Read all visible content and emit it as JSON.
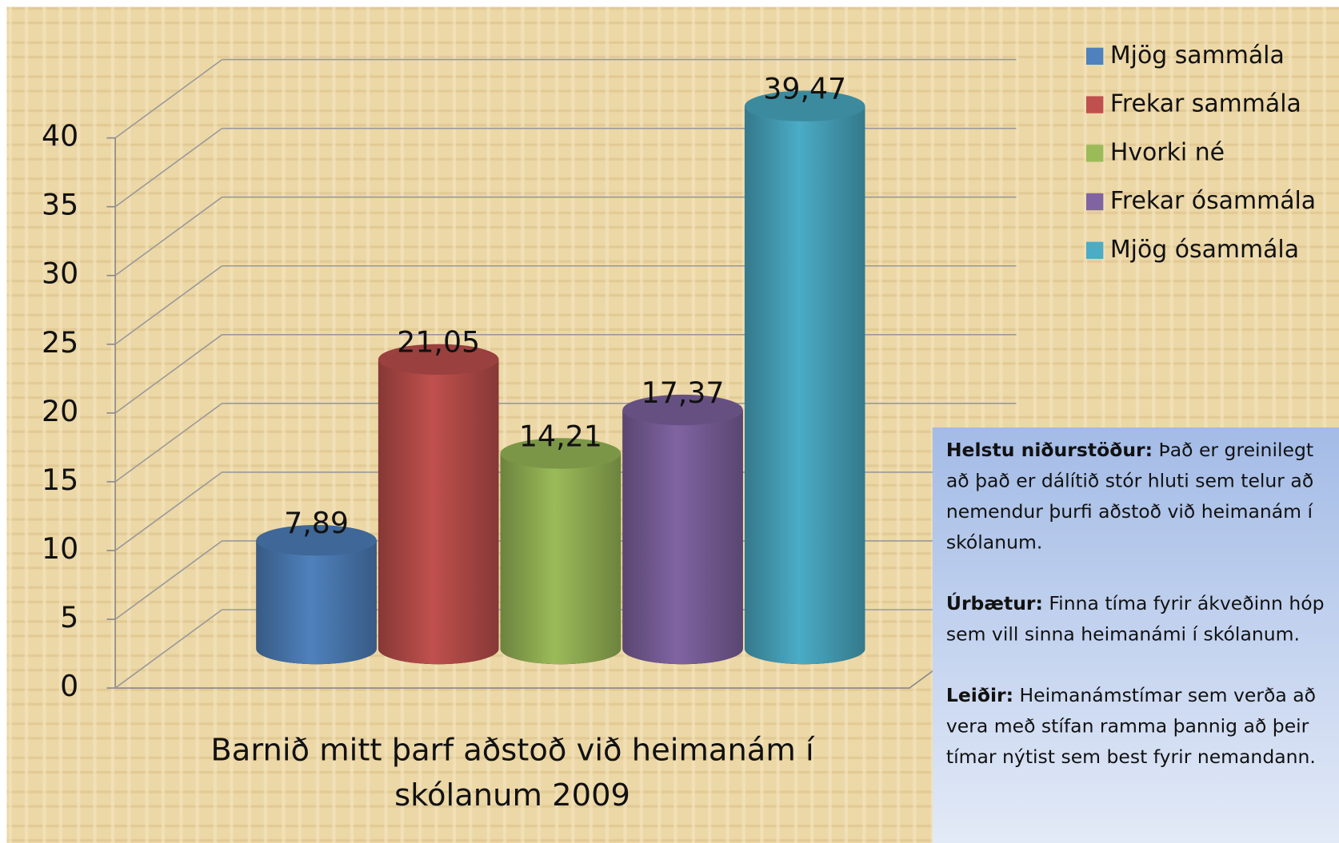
{
  "chart_data": {
    "type": "bar",
    "categories": [
      "Barnið mitt þarf aðstoð við heimanám í skólanum 2009"
    ],
    "series": [
      {
        "name": "Mjög sammála",
        "color": "#4f81bd",
        "values": [
          7.89
        ],
        "value_labels": [
          "7,89"
        ]
      },
      {
        "name": "Frekar sammála",
        "color": "#c0504d",
        "values": [
          21.05
        ],
        "value_labels": [
          "21,05"
        ]
      },
      {
        "name": "Hvorki né",
        "color": "#9bbb59",
        "values": [
          14.21
        ],
        "value_labels": [
          "14,21"
        ]
      },
      {
        "name": "Frekar ósammála",
        "color": "#8064a2",
        "values": [
          17.37
        ],
        "value_labels": [
          "17,37"
        ]
      },
      {
        "name": "Mjög ósammála",
        "color": "#4bacc6",
        "values": [
          39.47
        ],
        "value_labels": [
          "39,47"
        ]
      }
    ],
    "ylim": [
      0,
      40
    ],
    "yticks": [
      0,
      5,
      10,
      15,
      20,
      25,
      30,
      35,
      40
    ],
    "grid": true,
    "legend": "right"
  },
  "notes": [
    {
      "label": "Helstu niðurstöður:",
      "text": "Það er greinilegt að það er dálítið stór hluti sem telur að nemendur þurfi aðstoð við heimanám í skólanum."
    },
    {
      "label": "Úrbætur:",
      "text": "Finna tíma fyrir ákveðinn hóp sem vill sinna heimanámi í skólanum."
    },
    {
      "label": "Leiðir:",
      "text": "Heimanámstímar sem verða að vera með stífan ramma þannig að þeir tímar nýtist sem best fyrir nemandann."
    }
  ]
}
